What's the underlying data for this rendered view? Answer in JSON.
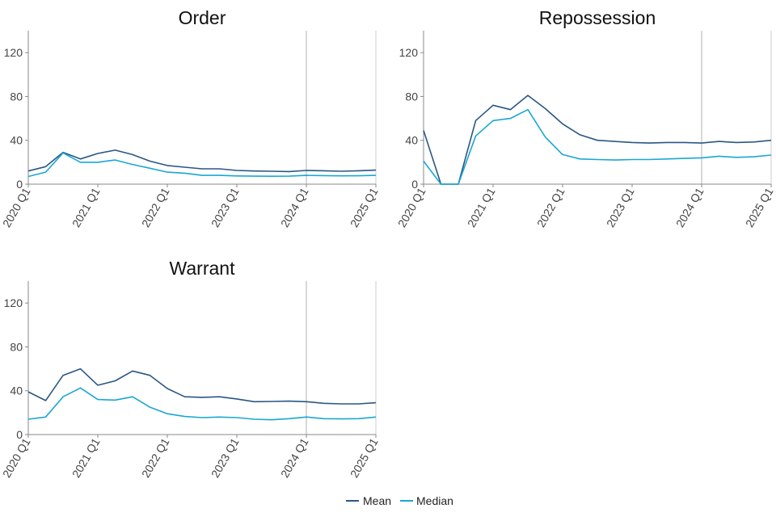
{
  "colors": {
    "mean": "#2a5783",
    "median": "#1aa7d4",
    "axis": "#888888",
    "refline": "#cccccc"
  },
  "legend": {
    "mean_label": "Mean",
    "median_label": "Median"
  },
  "chart_data": [
    {
      "type": "line",
      "title": "Order",
      "xlabel": "",
      "ylabel": "",
      "ylim": [
        0,
        140
      ],
      "yticks": [
        0,
        40,
        80,
        120
      ],
      "x": [
        "2020 Q1",
        "2020 Q2",
        "2020 Q3",
        "2020 Q4",
        "2021 Q1",
        "2021 Q2",
        "2021 Q3",
        "2021 Q4",
        "2022 Q1",
        "2022 Q2",
        "2022 Q3",
        "2022 Q4",
        "2023 Q1",
        "2023 Q2",
        "2023 Q3",
        "2023 Q4",
        "2024 Q1",
        "2024 Q2",
        "2024 Q3",
        "2024 Q4",
        "2025 Q1"
      ],
      "xtick_labels": [
        "2020 Q1",
        "2021 Q1",
        "2022 Q1",
        "2023 Q1",
        "2024 Q1",
        "2025 Q1"
      ],
      "reference_x": "2024 Q1",
      "grid": false,
      "series": [
        {
          "name": "Mean",
          "values": [
            12,
            16,
            29,
            23,
            28,
            31,
            27,
            21,
            17,
            15.5,
            14,
            14,
            12.5,
            12,
            11.8,
            11.5,
            12.5,
            12.2,
            11.8,
            12.2,
            12.8
          ]
        },
        {
          "name": "Median",
          "values": [
            7,
            11,
            28.5,
            20,
            20,
            22,
            18,
            14.5,
            11,
            10,
            8,
            8,
            7.5,
            7.3,
            7.2,
            7.3,
            8,
            7.8,
            7.6,
            7.7,
            8
          ]
        }
      ]
    },
    {
      "type": "line",
      "title": "Repossession",
      "xlabel": "",
      "ylabel": "",
      "ylim": [
        0,
        140
      ],
      "yticks": [
        0,
        40,
        80,
        120
      ],
      "x": [
        "2020 Q1",
        "2020 Q2",
        "2020 Q3",
        "2020 Q4",
        "2021 Q1",
        "2021 Q2",
        "2021 Q3",
        "2021 Q4",
        "2022 Q1",
        "2022 Q2",
        "2022 Q3",
        "2022 Q4",
        "2023 Q1",
        "2023 Q2",
        "2023 Q3",
        "2023 Q4",
        "2024 Q1",
        "2024 Q2",
        "2024 Q3",
        "2024 Q4",
        "2025 Q1"
      ],
      "xtick_labels": [
        "2020 Q1",
        "2021 Q1",
        "2022 Q1",
        "2023 Q1",
        "2024 Q1",
        "2025 Q1"
      ],
      "reference_x": "2024 Q1",
      "grid": false,
      "series": [
        {
          "name": "Mean",
          "values": [
            49,
            0,
            0,
            58,
            72,
            68,
            81,
            69,
            55,
            45,
            40,
            39,
            38,
            37.5,
            38,
            38,
            37.5,
            39,
            38,
            38.5,
            40
          ]
        },
        {
          "name": "Median",
          "values": [
            21,
            0,
            0,
            44,
            58,
            60,
            68,
            43,
            27,
            23,
            22.5,
            22,
            22.5,
            22.5,
            23,
            23.5,
            24,
            25.5,
            24.5,
            25,
            26.5
          ]
        }
      ]
    },
    {
      "type": "line",
      "title": "Warrant",
      "xlabel": "",
      "ylabel": "",
      "ylim": [
        0,
        140
      ],
      "yticks": [
        0,
        40,
        80,
        120
      ],
      "x": [
        "2020 Q1",
        "2020 Q2",
        "2020 Q3",
        "2020 Q4",
        "2021 Q1",
        "2021 Q2",
        "2021 Q3",
        "2021 Q4",
        "2022 Q1",
        "2022 Q2",
        "2022 Q3",
        "2022 Q4",
        "2023 Q1",
        "2023 Q2",
        "2023 Q3",
        "2023 Q4",
        "2024 Q1",
        "2024 Q2",
        "2024 Q3",
        "2024 Q4",
        "2025 Q1"
      ],
      "xtick_labels": [
        "2020 Q1",
        "2021 Q1",
        "2022 Q1",
        "2023 Q1",
        "2024 Q1",
        "2025 Q1"
      ],
      "reference_x": "2024 Q1",
      "grid": false,
      "series": [
        {
          "name": "Mean",
          "values": [
            39,
            31,
            54,
            60,
            45,
            49,
            58,
            54,
            42,
            34.5,
            34,
            34.5,
            32.5,
            30,
            30.2,
            30.5,
            30,
            28.5,
            28,
            28,
            29
          ]
        },
        {
          "name": "Median",
          "values": [
            14,
            16,
            34.5,
            42.5,
            32,
            31.5,
            34.5,
            25,
            19,
            16.5,
            15.5,
            16,
            15.5,
            14,
            13.5,
            14.5,
            16,
            14.5,
            14.3,
            14.5,
            16
          ]
        }
      ]
    }
  ]
}
